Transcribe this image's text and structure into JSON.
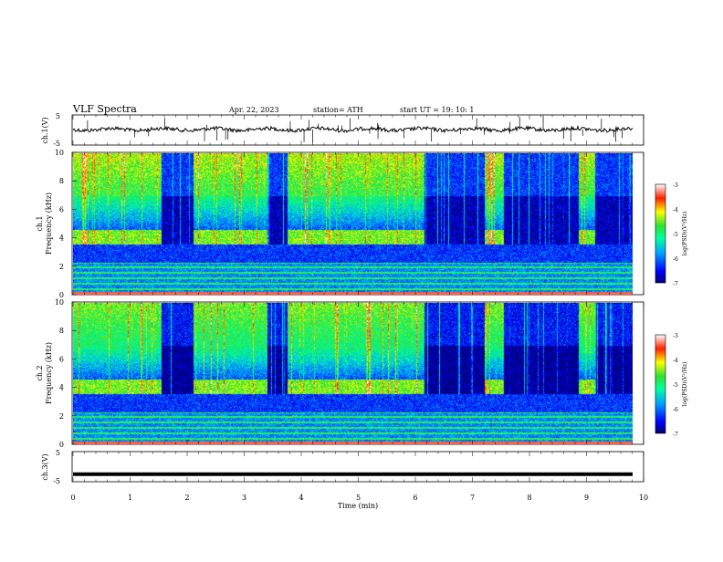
{
  "header": {
    "title": "VLF  Spectra",
    "date": "Apr. 22, 2023",
    "station": "station= ATH",
    "start": "start  UT  =    19: 10: 1"
  },
  "chart_data": [
    {
      "type": "line",
      "name": "ch1-waveform",
      "ylabel": "ch.1(V)",
      "ylim": [
        -5,
        5
      ],
      "yticks": [
        "5",
        "-5"
      ],
      "x_range_min": [
        0,
        10
      ],
      "series_level_v": 0.2
    },
    {
      "type": "heatmap",
      "name": "ch1-spectrogram",
      "ylabel_line1": "ch.1",
      "ylabel_line2": "Frequency  (kHz)",
      "ylim_khz": [
        0,
        10
      ],
      "yticks": [
        "0",
        "2",
        "4",
        "6",
        "8",
        "10"
      ],
      "quiet_intervals_min": [
        [
          1.55,
          2.1
        ],
        [
          3.4,
          3.75
        ],
        [
          6.15,
          7.2
        ],
        [
          7.55,
          8.85
        ],
        [
          9.15,
          9.8
        ]
      ],
      "colorbar": {
        "label": "log(PSD)(V²/Hz)",
        "ticks": [
          "-3",
          "-4",
          "-5",
          "-6",
          "-7"
        ],
        "range": [
          -7,
          -3
        ]
      }
    },
    {
      "type": "heatmap",
      "name": "ch2-spectrogram",
      "ylabel_line1": "ch.2",
      "ylabel_line2": "Frequency  (kHz)",
      "ylim_khz": [
        0,
        10
      ],
      "yticks": [
        "0",
        "2",
        "4",
        "6",
        "8",
        "10"
      ],
      "quiet_intervals_min": [
        [
          1.55,
          2.1
        ],
        [
          3.4,
          3.75
        ],
        [
          6.15,
          7.2
        ],
        [
          7.55,
          8.85
        ],
        [
          9.15,
          9.8
        ]
      ],
      "colorbar": {
        "label": "log(PSD)(V²/Hz)",
        "ticks": [
          "-3",
          "-4",
          "-5",
          "-6",
          "-7"
        ],
        "range": [
          -7,
          -3
        ]
      }
    },
    {
      "type": "line",
      "name": "ch3-waveform",
      "ylabel": "ch.3(V)",
      "ylim": [
        -5,
        5
      ],
      "yticks": [
        "5",
        "-5"
      ],
      "series_level_v": -2.5
    }
  ],
  "xaxis": {
    "label": "Time  (min)",
    "ticks": [
      "0",
      "1",
      "2",
      "3",
      "4",
      "5",
      "6",
      "7",
      "8",
      "9",
      "10"
    ],
    "range": [
      0,
      10
    ]
  }
}
